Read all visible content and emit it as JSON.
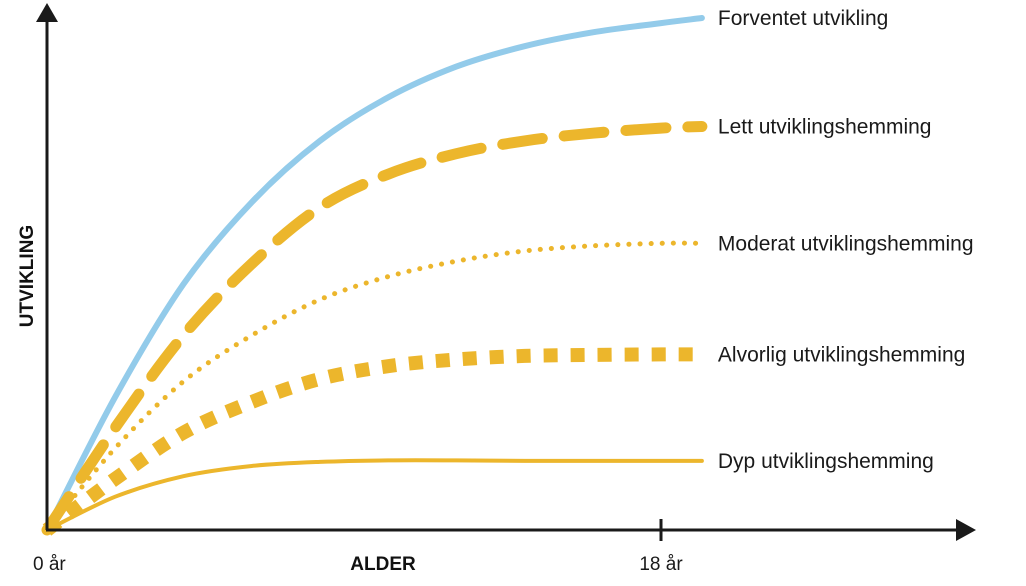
{
  "chart_data": {
    "type": "line",
    "xlabel": "ALDER",
    "ylabel": "UTVIKLING",
    "x_ticks": [
      {
        "label": "0 år",
        "value": 0
      },
      {
        "label": "18 år",
        "value": 18
      }
    ],
    "xlim": [
      0,
      27.5
    ],
    "ylim": [
      0,
      100
    ],
    "grid": false,
    "legend": "right-end labels",
    "series": [
      {
        "name": "Forventet utvikling",
        "color": "#93cbea",
        "style": "solid",
        "x": [
          0,
          2,
          4,
          6,
          8,
          10,
          12,
          14,
          16,
          18,
          19.2
        ],
        "y": [
          0,
          26,
          48,
          64,
          76,
          84.5,
          90.5,
          94.5,
          97.2,
          99,
          100
        ]
      },
      {
        "name": "Lett utviklingshemming",
        "color": "#ecb62c",
        "style": "dash",
        "x": [
          0,
          2,
          4,
          6,
          8,
          10,
          12,
          14,
          16,
          18,
          19.2
        ],
        "y": [
          0,
          20,
          38,
          52,
          63,
          69.5,
          73.5,
          76,
          77.5,
          78.5,
          78.8
        ]
      },
      {
        "name": "Moderat utviklingshemming",
        "color": "#ecb62c",
        "style": "dot",
        "x": [
          0,
          2,
          4,
          6,
          8,
          10,
          12,
          14,
          16,
          18,
          19.2
        ],
        "y": [
          0,
          16,
          29,
          38,
          45,
          49.5,
          52.5,
          54.5,
          55.5,
          56,
          56
        ]
      },
      {
        "name": "Alvorlig utviklingshemming",
        "color": "#ecb62c",
        "style": "square-dot",
        "x": [
          0,
          2,
          4,
          6,
          8,
          10,
          12,
          14,
          16,
          18,
          19.2
        ],
        "y": [
          0,
          10,
          19,
          25,
          29.5,
          32,
          33.3,
          34,
          34.2,
          34.3,
          34.3
        ]
      },
      {
        "name": "Dyp utviklingshemming",
        "color": "#ecb62c",
        "style": "solid-thin",
        "x": [
          0,
          2,
          4,
          6,
          8,
          10,
          12,
          14,
          16,
          18,
          19.2
        ],
        "y": [
          0,
          6.5,
          10.5,
          12.5,
          13.3,
          13.6,
          13.6,
          13.5,
          13.5,
          13.5,
          13.5
        ]
      }
    ]
  }
}
